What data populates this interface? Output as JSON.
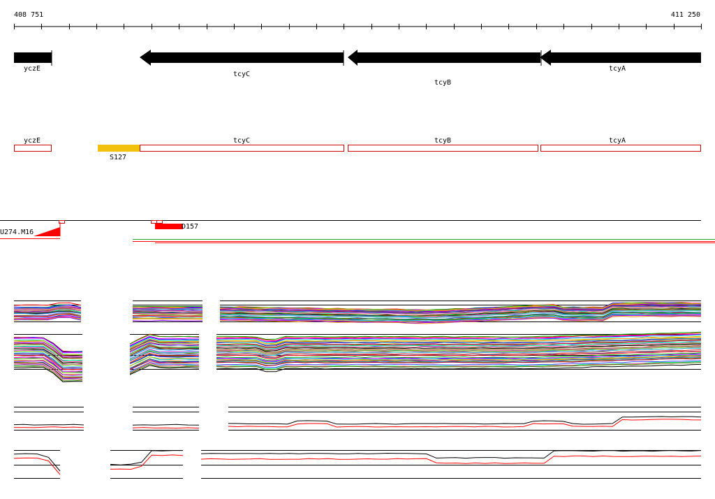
{
  "ruler": {
    "start_label": "408 751",
    "end_label": "411 250"
  },
  "genes": [
    {
      "name": "yczE",
      "strand": "+"
    },
    {
      "name": "tcyC",
      "strand": "-"
    },
    {
      "name": "tcyB",
      "strand": "-"
    },
    {
      "name": "tcyA",
      "strand": "-"
    }
  ],
  "features": [
    {
      "name": "yczE",
      "type": "gene-box"
    },
    {
      "name": "S127",
      "type": "segment",
      "color": "#f2c10e"
    },
    {
      "name": "tcyC",
      "type": "gene-box"
    },
    {
      "name": "tcyB",
      "type": "gene-box"
    },
    {
      "name": "tcyA",
      "type": "gene-box"
    }
  ],
  "transcripts": [
    {
      "name": "U274.M16",
      "color": "#ff0000"
    },
    {
      "name": "D157",
      "color": "#ff0000"
    }
  ],
  "colors": {
    "gene_arrow": "#000000",
    "feature_outline": "#cc0000",
    "segment_fill": "#f2c10e",
    "transcript": "#ff0000",
    "line_green": "#2ca02c"
  },
  "expression_panels": [
    {
      "name": "expression-panel-conditions-top",
      "line_count": 32
    },
    {
      "name": "expression-panel-conditions-bottom",
      "line_count": 40
    },
    {
      "name": "expression-panel-strand-top",
      "line_count": 2
    },
    {
      "name": "expression-panel-strand-bottom",
      "line_count": 2
    }
  ]
}
